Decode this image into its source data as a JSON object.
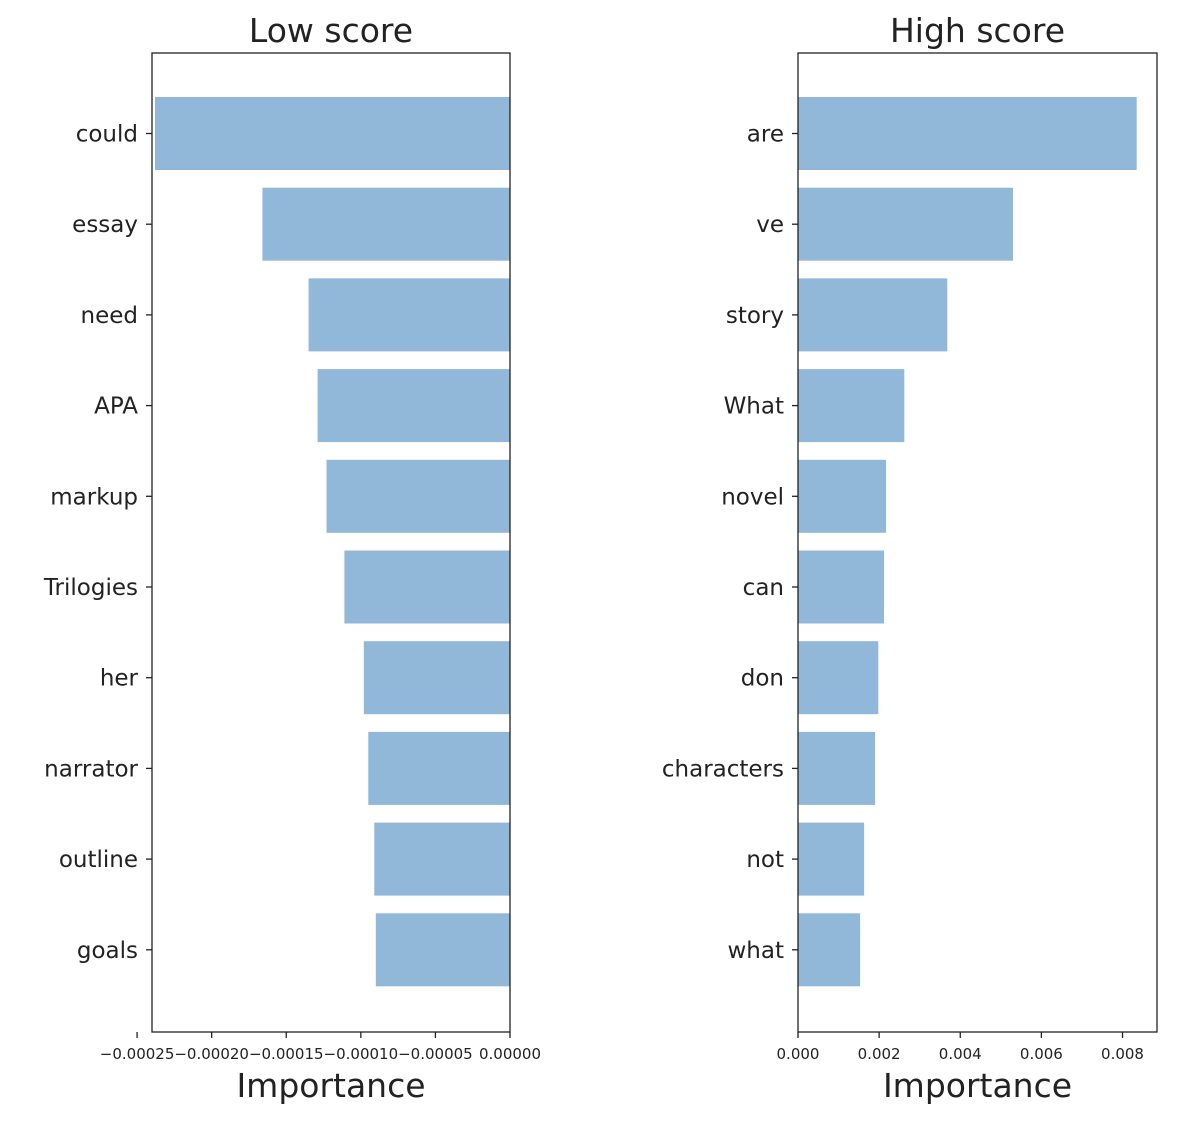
{
  "chart_data": [
    {
      "type": "bar",
      "orientation": "horizontal",
      "title": "Low score",
      "xlabel": "Importance",
      "ylabel": "",
      "categories": [
        "could",
        "essay",
        "need",
        "APA",
        "markup",
        "Trilogies",
        "her",
        "narrator",
        "outline",
        "goals"
      ],
      "values": [
        -0.000238,
        -0.000166,
        -0.000135,
        -0.000129,
        -0.000123,
        -0.000111,
        -9.8e-05,
        -9.5e-05,
        -9.1e-05,
        -9e-05
      ],
      "xlim": [
        -0.00024,
        0.0
      ],
      "xticks": [
        -0.00025,
        -0.0002,
        -0.00015,
        -0.0001,
        -5e-05,
        0.0
      ],
      "xtick_labels": [
        "−0.00025",
        "−0.00020",
        "−0.00015",
        "−0.00010",
        "−0.00005",
        "0.00000"
      ],
      "bar_color": "#91b8d8",
      "grid": false
    },
    {
      "type": "bar",
      "orientation": "horizontal",
      "title": "High score",
      "xlabel": "Importance",
      "ylabel": "",
      "categories": [
        "are",
        "ve",
        "story",
        "What",
        "novel",
        "can",
        "don",
        "characters",
        "not",
        "what"
      ],
      "values": [
        0.00835,
        0.0053,
        0.00368,
        0.00262,
        0.00217,
        0.00212,
        0.00198,
        0.0019,
        0.00163,
        0.00153
      ],
      "xlim": [
        0.0,
        0.00885
      ],
      "xticks": [
        0.0,
        0.002,
        0.004,
        0.006,
        0.008
      ],
      "xtick_labels": [
        "0.000",
        "0.002",
        "0.004",
        "0.006",
        "0.008"
      ],
      "bar_color": "#91b8d8",
      "grid": false
    }
  ]
}
